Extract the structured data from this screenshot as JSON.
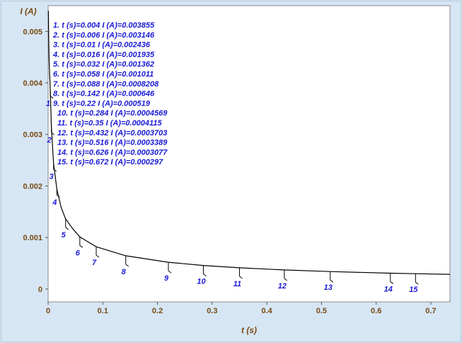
{
  "chart_data": {
    "type": "line",
    "xlabel": "t (s)",
    "ylabel": "I (A)",
    "xlim": [
      0,
      0.735
    ],
    "ylim": [
      -0.00025,
      0.0055
    ],
    "xticks": [
      0,
      0.1,
      0.2,
      0.3,
      0.4,
      0.5,
      0.6,
      0.7
    ],
    "xtick_labels": [
      "0",
      "0.1",
      "0.2",
      "0.3",
      "0.4",
      "0.5",
      "0.6",
      "0.7"
    ],
    "yticks": [
      0,
      0.001,
      0.002,
      0.003,
      0.004,
      0.005
    ],
    "ytick_labels": [
      "0",
      "0.001",
      "0.002",
      "0.003",
      "0.004",
      "0.005"
    ],
    "grid": false,
    "curve": {
      "x": [
        0.0005,
        0.001,
        0.002,
        0.004,
        0.006,
        0.01,
        0.016,
        0.024,
        0.032,
        0.045,
        0.058,
        0.088,
        0.142,
        0.22,
        0.284,
        0.35,
        0.432,
        0.516,
        0.626,
        0.672,
        0.735
      ],
      "y": [
        0.0054,
        0.0049,
        0.0044,
        0.003855,
        0.003146,
        0.002436,
        0.001935,
        0.00158,
        0.001362,
        0.00117,
        0.001011,
        0.0008208,
        0.000646,
        0.000519,
        0.0004569,
        0.0004115,
        0.0003703,
        0.0003389,
        0.0003077,
        0.000297,
        0.000285
      ]
    },
    "markers": [
      {
        "label": "1",
        "text": "1. t (s)=0.004  I (A)=0.003855",
        "t": 0.004,
        "i": 0.003855
      },
      {
        "label": "2",
        "text": "2. t (s)=0.006  I (A)=0.003146",
        "t": 0.006,
        "i": 0.003146
      },
      {
        "label": "3",
        "text": "3. t (s)=0.01  I (A)=0.002436",
        "t": 0.01,
        "i": 0.002436
      },
      {
        "label": "4",
        "text": "4. t (s)=0.016  I (A)=0.001935",
        "t": 0.016,
        "i": 0.001935
      },
      {
        "label": "5",
        "text": "5. t (s)=0.032  I (A)=0.001362",
        "t": 0.032,
        "i": 0.001362
      },
      {
        "label": "6",
        "text": "6. t (s)=0.058  I (A)=0.001011",
        "t": 0.058,
        "i": 0.001011
      },
      {
        "label": "7",
        "text": "7. t (s)=0.088  I (A)=0.0008208",
        "t": 0.088,
        "i": 0.0008208
      },
      {
        "label": "8",
        "text": "8. t (s)=0.142  I (A)=0.000646",
        "t": 0.142,
        "i": 0.000646
      },
      {
        "label": "9",
        "text": "9. t (s)=0.22  I (A)=0.000519",
        "t": 0.22,
        "i": 0.000519
      },
      {
        "label": "10",
        "text": "10. t (s)=0.284  I (A)=0.0004569",
        "t": 0.284,
        "i": 0.0004569
      },
      {
        "label": "11",
        "text": "11. t (s)=0.35  I (A)=0.0004115",
        "t": 0.35,
        "i": 0.0004115
      },
      {
        "label": "12",
        "text": "12. t (s)=0.432  I (A)=0.0003703",
        "t": 0.432,
        "i": 0.0003703
      },
      {
        "label": "13",
        "text": "13. t (s)=0.516  I (A)=0.0003389",
        "t": 0.516,
        "i": 0.0003389
      },
      {
        "label": "14",
        "text": "14. t (s)=0.626  I (A)=0.0003077",
        "t": 0.626,
        "i": 0.0003077
      },
      {
        "label": "15",
        "text": "15. t (s)=0.672  I (A)=0.000297",
        "t": 0.672,
        "i": 0.000297
      }
    ],
    "colors": {
      "curve": "#000000",
      "annotation": "#1a1ad6",
      "axis_text": "#7a4a12",
      "background": "#d6e6f4",
      "plot_background": "#ffffff"
    }
  }
}
